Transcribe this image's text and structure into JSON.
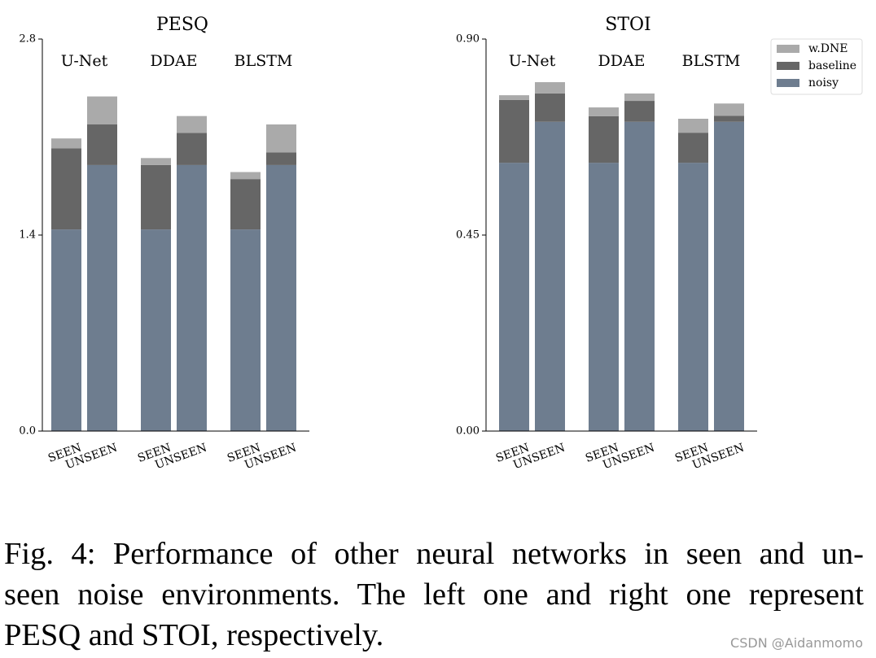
{
  "chart_data": [
    {
      "type": "stacked_bar",
      "title": "PESQ",
      "groups": [
        "U-Net",
        "DDAE",
        "BLSTM"
      ],
      "categories": [
        "SEEN",
        "UNSEEN",
        "SEEN",
        "UNSEEN",
        "SEEN",
        "UNSEEN"
      ],
      "series": [
        {
          "name": "noisy",
          "color": "#6e7d8f",
          "values": [
            1.44,
            1.9,
            1.44,
            1.9,
            1.44,
            1.9
          ]
        },
        {
          "name": "baseline",
          "color": "#666666",
          "values": [
            0.58,
            0.29,
            0.46,
            0.23,
            0.36,
            0.09
          ]
        },
        {
          "name": "w.DNE",
          "color": "#aaaaaa",
          "values": [
            0.07,
            0.2,
            0.05,
            0.12,
            0.05,
            0.2
          ]
        }
      ],
      "ylim": [
        0,
        2.8
      ],
      "yticks": [
        {
          "value": 0,
          "label": "0.0"
        },
        1.4,
        2.8
      ]
    },
    {
      "type": "stacked_bar",
      "title": "STOI",
      "groups": [
        "U-Net",
        "DDAE",
        "BLSTM"
      ],
      "categories": [
        "SEEN",
        "UNSEEN",
        "SEEN",
        "UNSEEN",
        "SEEN",
        "UNSEEN"
      ],
      "series": [
        {
          "name": "noisy",
          "color": "#6e7d8f",
          "values": [
            0.616,
            0.71,
            0.616,
            0.71,
            0.616,
            0.71
          ]
        },
        {
          "name": "baseline",
          "color": "#666666",
          "values": [
            0.144,
            0.065,
            0.107,
            0.048,
            0.069,
            0.014
          ]
        },
        {
          "name": "w.DNE",
          "color": "#aaaaaa",
          "values": [
            0.011,
            0.026,
            0.02,
            0.017,
            0.032,
            0.028
          ]
        }
      ],
      "ylim": [
        0,
        0.9
      ],
      "yticks": [
        {
          "value": 0,
          "label": "0.00"
        },
        0.45,
        {
          "value": 0.9,
          "label": "0.90"
        }
      ],
      "legend": "right"
    }
  ],
  "caption": [
    "Fig. 4: Performance of other neural networks in seen and un-",
    "seen noise environments. The left one and right one represent",
    "PESQ and STOI, respectively."
  ],
  "watermark": "CSDN @Aidanmomo"
}
